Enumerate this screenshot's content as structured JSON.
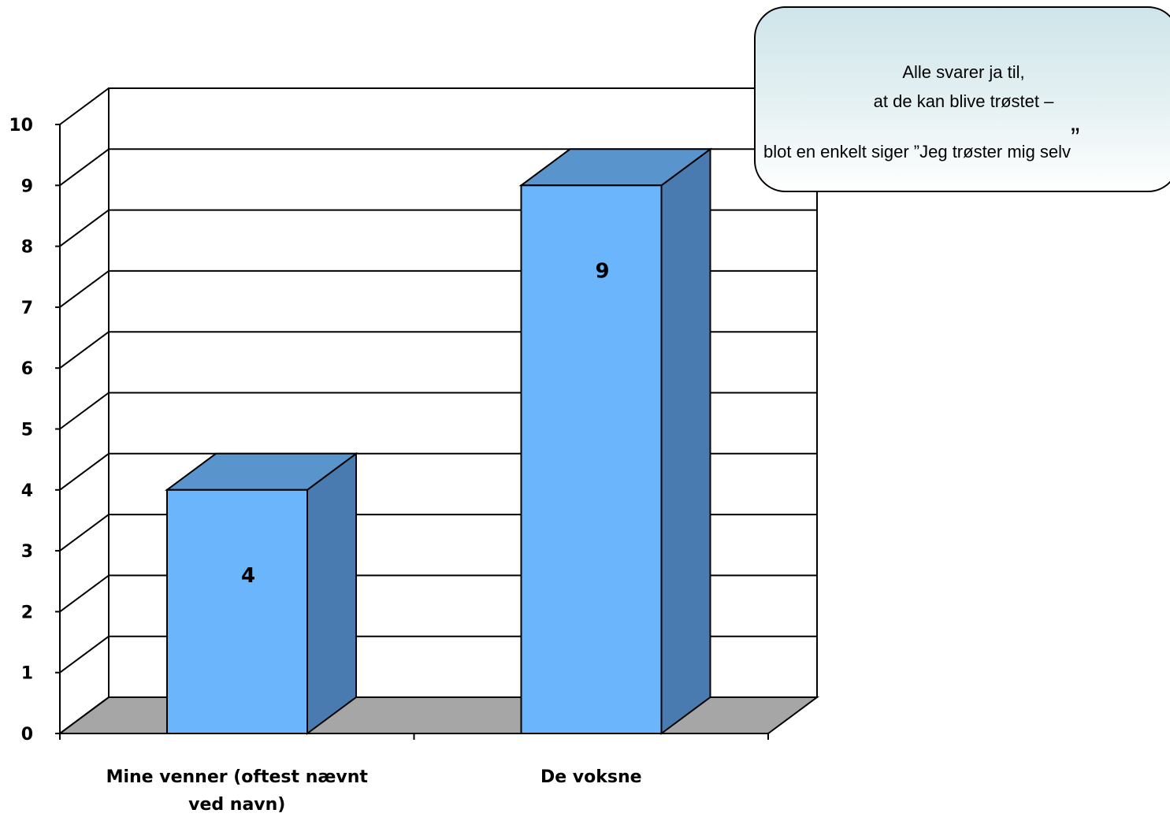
{
  "chart_data": {
    "type": "bar",
    "categories": [
      "Mine venner (oftest nævnt ved navn)",
      "De voksne"
    ],
    "category_lines": [
      [
        "Mine venner (oftest nævnt",
        "ved navn)"
      ],
      [
        "De voksne"
      ]
    ],
    "values": [
      4,
      9
    ],
    "data_labels": [
      "4",
      "9"
    ],
    "ylim": [
      0,
      10
    ],
    "yticks": [
      "0",
      "1",
      "2",
      "3",
      "4",
      "5",
      "6",
      "7",
      "8",
      "9",
      "10"
    ],
    "grid": true,
    "three_d": true,
    "colors": {
      "bar_front": "#6bb5fc",
      "bar_top": "#5a94cc",
      "bar_side": "#4a7bb0",
      "floor": "#a6a6a6",
      "lines": "#000000"
    }
  },
  "callout": {
    "line1": "Alle svarer ja til,",
    "line2": "at de kan blive trøstet –",
    "line3": "blot en enkelt siger ”Jeg trøster mig selv",
    "closing_quote": "”"
  }
}
